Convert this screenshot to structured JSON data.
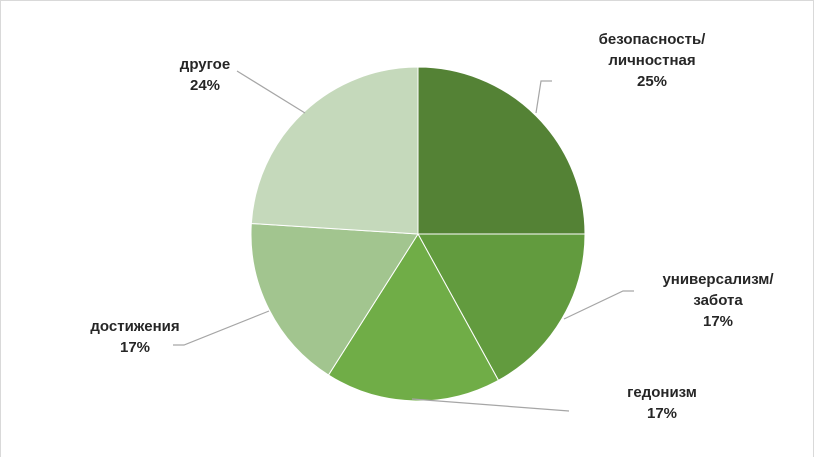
{
  "chart_data": {
    "type": "pie",
    "title": "",
    "slices": [
      {
        "label_lines": [
          "безопасность/",
          "личностная"
        ],
        "value": 25,
        "pct_text": "25%",
        "color": "#548235"
      },
      {
        "label_lines": [
          "универсализм/",
          "забота"
        ],
        "value": 17,
        "pct_text": "17%",
        "color": "#629b3e"
      },
      {
        "label_lines": [
          "гедонизм"
        ],
        "value": 17,
        "pct_text": "17%",
        "color": "#70ad47"
      },
      {
        "label_lines": [
          "достижения"
        ],
        "value": 17,
        "pct_text": "17%",
        "color": "#a2c58f"
      },
      {
        "label_lines": [
          "другое"
        ],
        "value": 24,
        "pct_text": "24%",
        "color": "#c5d9bb"
      }
    ],
    "start_angle_deg": 0,
    "direction": "clockwise",
    "legend": "none",
    "label_placement": "outside-with-leader-lines"
  }
}
